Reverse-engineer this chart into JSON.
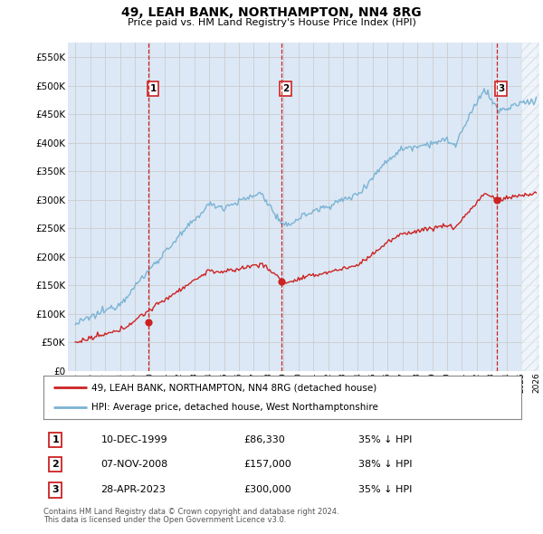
{
  "title": "49, LEAH BANK, NORTHAMPTON, NN4 8RG",
  "subtitle": "Price paid vs. HM Land Registry's House Price Index (HPI)",
  "hpi_label": "HPI: Average price, detached house, West Northamptonshire",
  "price_label": "49, LEAH BANK, NORTHAMPTON, NN4 8RG (detached house)",
  "footer1": "Contains HM Land Registry data © Crown copyright and database right 2024.",
  "footer2": "This data is licensed under the Open Government Licence v3.0.",
  "transactions": [
    {
      "num": 1,
      "date": "10-DEC-1999",
      "price": "86,330",
      "price_val": 86330,
      "pct": "35%",
      "dir": "↓",
      "year": 1999.92
    },
    {
      "num": 2,
      "date": "07-NOV-2008",
      "price": "157,000",
      "price_val": 157000,
      "pct": "38%",
      "dir": "↓",
      "year": 2008.85
    },
    {
      "num": 3,
      "date": "28-APR-2023",
      "price": "300,000",
      "price_val": 300000,
      "pct": "35%",
      "dir": "↓",
      "year": 2023.33
    }
  ],
  "hpi_color": "#7ab3d4",
  "price_color": "#cc2222",
  "vline_color": "#cc2222",
  "grid_color": "#c8c8c8",
  "bg_color": "#dce8f5",
  "hatch_color": "#c8d8e8",
  "ylim": [
    0,
    575000
  ],
  "xlim_start": 1994.5,
  "xlim_end": 2026.2,
  "yticks": [
    0,
    50000,
    100000,
    150000,
    200000,
    250000,
    300000,
    350000,
    400000,
    450000,
    500000,
    550000
  ],
  "xticks": [
    1995,
    1996,
    1997,
    1998,
    1999,
    2000,
    2001,
    2002,
    2003,
    2004,
    2005,
    2006,
    2007,
    2008,
    2009,
    2010,
    2011,
    2012,
    2013,
    2014,
    2015,
    2016,
    2017,
    2018,
    2019,
    2020,
    2021,
    2022,
    2023,
    2024,
    2025,
    2026
  ]
}
